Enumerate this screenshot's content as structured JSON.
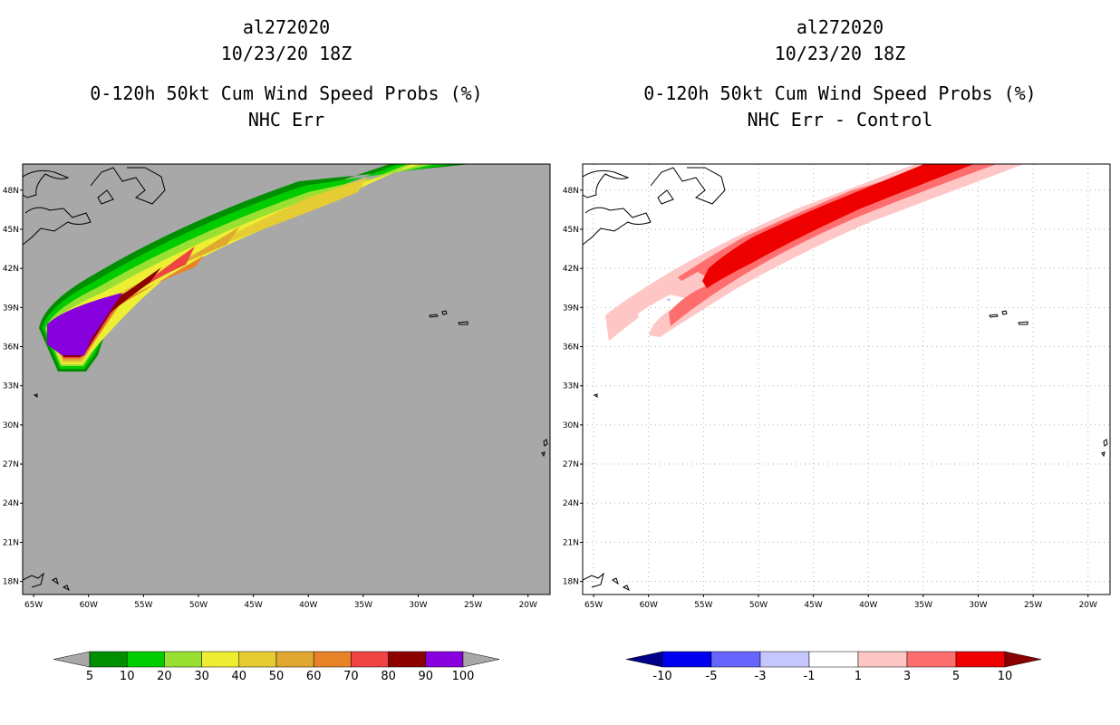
{
  "chart_data": [
    {
      "type": "contour-map",
      "title": {
        "storm_id": "al272020",
        "date": "10/23/20 18Z",
        "product": "0-120h 50kt Cum Wind Speed Probs (%)",
        "subtitle": "NHC Err"
      },
      "x_ticks": [
        "65W",
        "60W",
        "55W",
        "50W",
        "45W",
        "40W",
        "35W",
        "30W",
        "25W",
        "20W"
      ],
      "y_ticks": [
        "48N",
        "45N",
        "42N",
        "39N",
        "36N",
        "33N",
        "30N",
        "27N",
        "24N",
        "21N",
        "18N"
      ],
      "xlim_lon": [
        -66,
        -18
      ],
      "ylim_lat": [
        17,
        50
      ],
      "background_color": "#a8a8a8",
      "colorbar": {
        "labels": [
          "5",
          "10",
          "20",
          "30",
          "40",
          "50",
          "60",
          "70",
          "80",
          "90",
          "100"
        ],
        "colors": [
          "#008f00",
          "#00cc00",
          "#99e033",
          "#eeee33",
          "#e6cc33",
          "#e0a830",
          "#e88328",
          "#ee4444",
          "#8c0000",
          "#8800dd"
        ],
        "left_end": "#a8a8a8",
        "right_end": "#a8a8a8"
      }
    },
    {
      "type": "contour-map",
      "title": {
        "storm_id": "al272020",
        "date": "10/23/20 18Z",
        "product": "0-120h 50kt Cum Wind Speed Probs (%)",
        "subtitle": "NHC Err - Control"
      },
      "x_ticks": [
        "65W",
        "60W",
        "55W",
        "50W",
        "45W",
        "40W",
        "35W",
        "30W",
        "25W",
        "20W"
      ],
      "y_ticks": [
        "48N",
        "45N",
        "42N",
        "39N",
        "36N",
        "33N",
        "30N",
        "27N",
        "24N",
        "21N",
        "18N"
      ],
      "xlim_lon": [
        -66,
        -18
      ],
      "ylim_lat": [
        17,
        50
      ],
      "background_color": "#ffffff",
      "colorbar": {
        "labels": [
          "-10",
          "-5",
          "-3",
          "-1",
          "1",
          "3",
          "5",
          "10"
        ],
        "colors": [
          "#0000ee",
          "#6666ff",
          "#c6c6ff",
          "#ffffff",
          "#ffc6c6",
          "#ff6e6e",
          "#ee0000"
        ],
        "left_end": "#000088",
        "right_end": "#880000"
      }
    }
  ]
}
